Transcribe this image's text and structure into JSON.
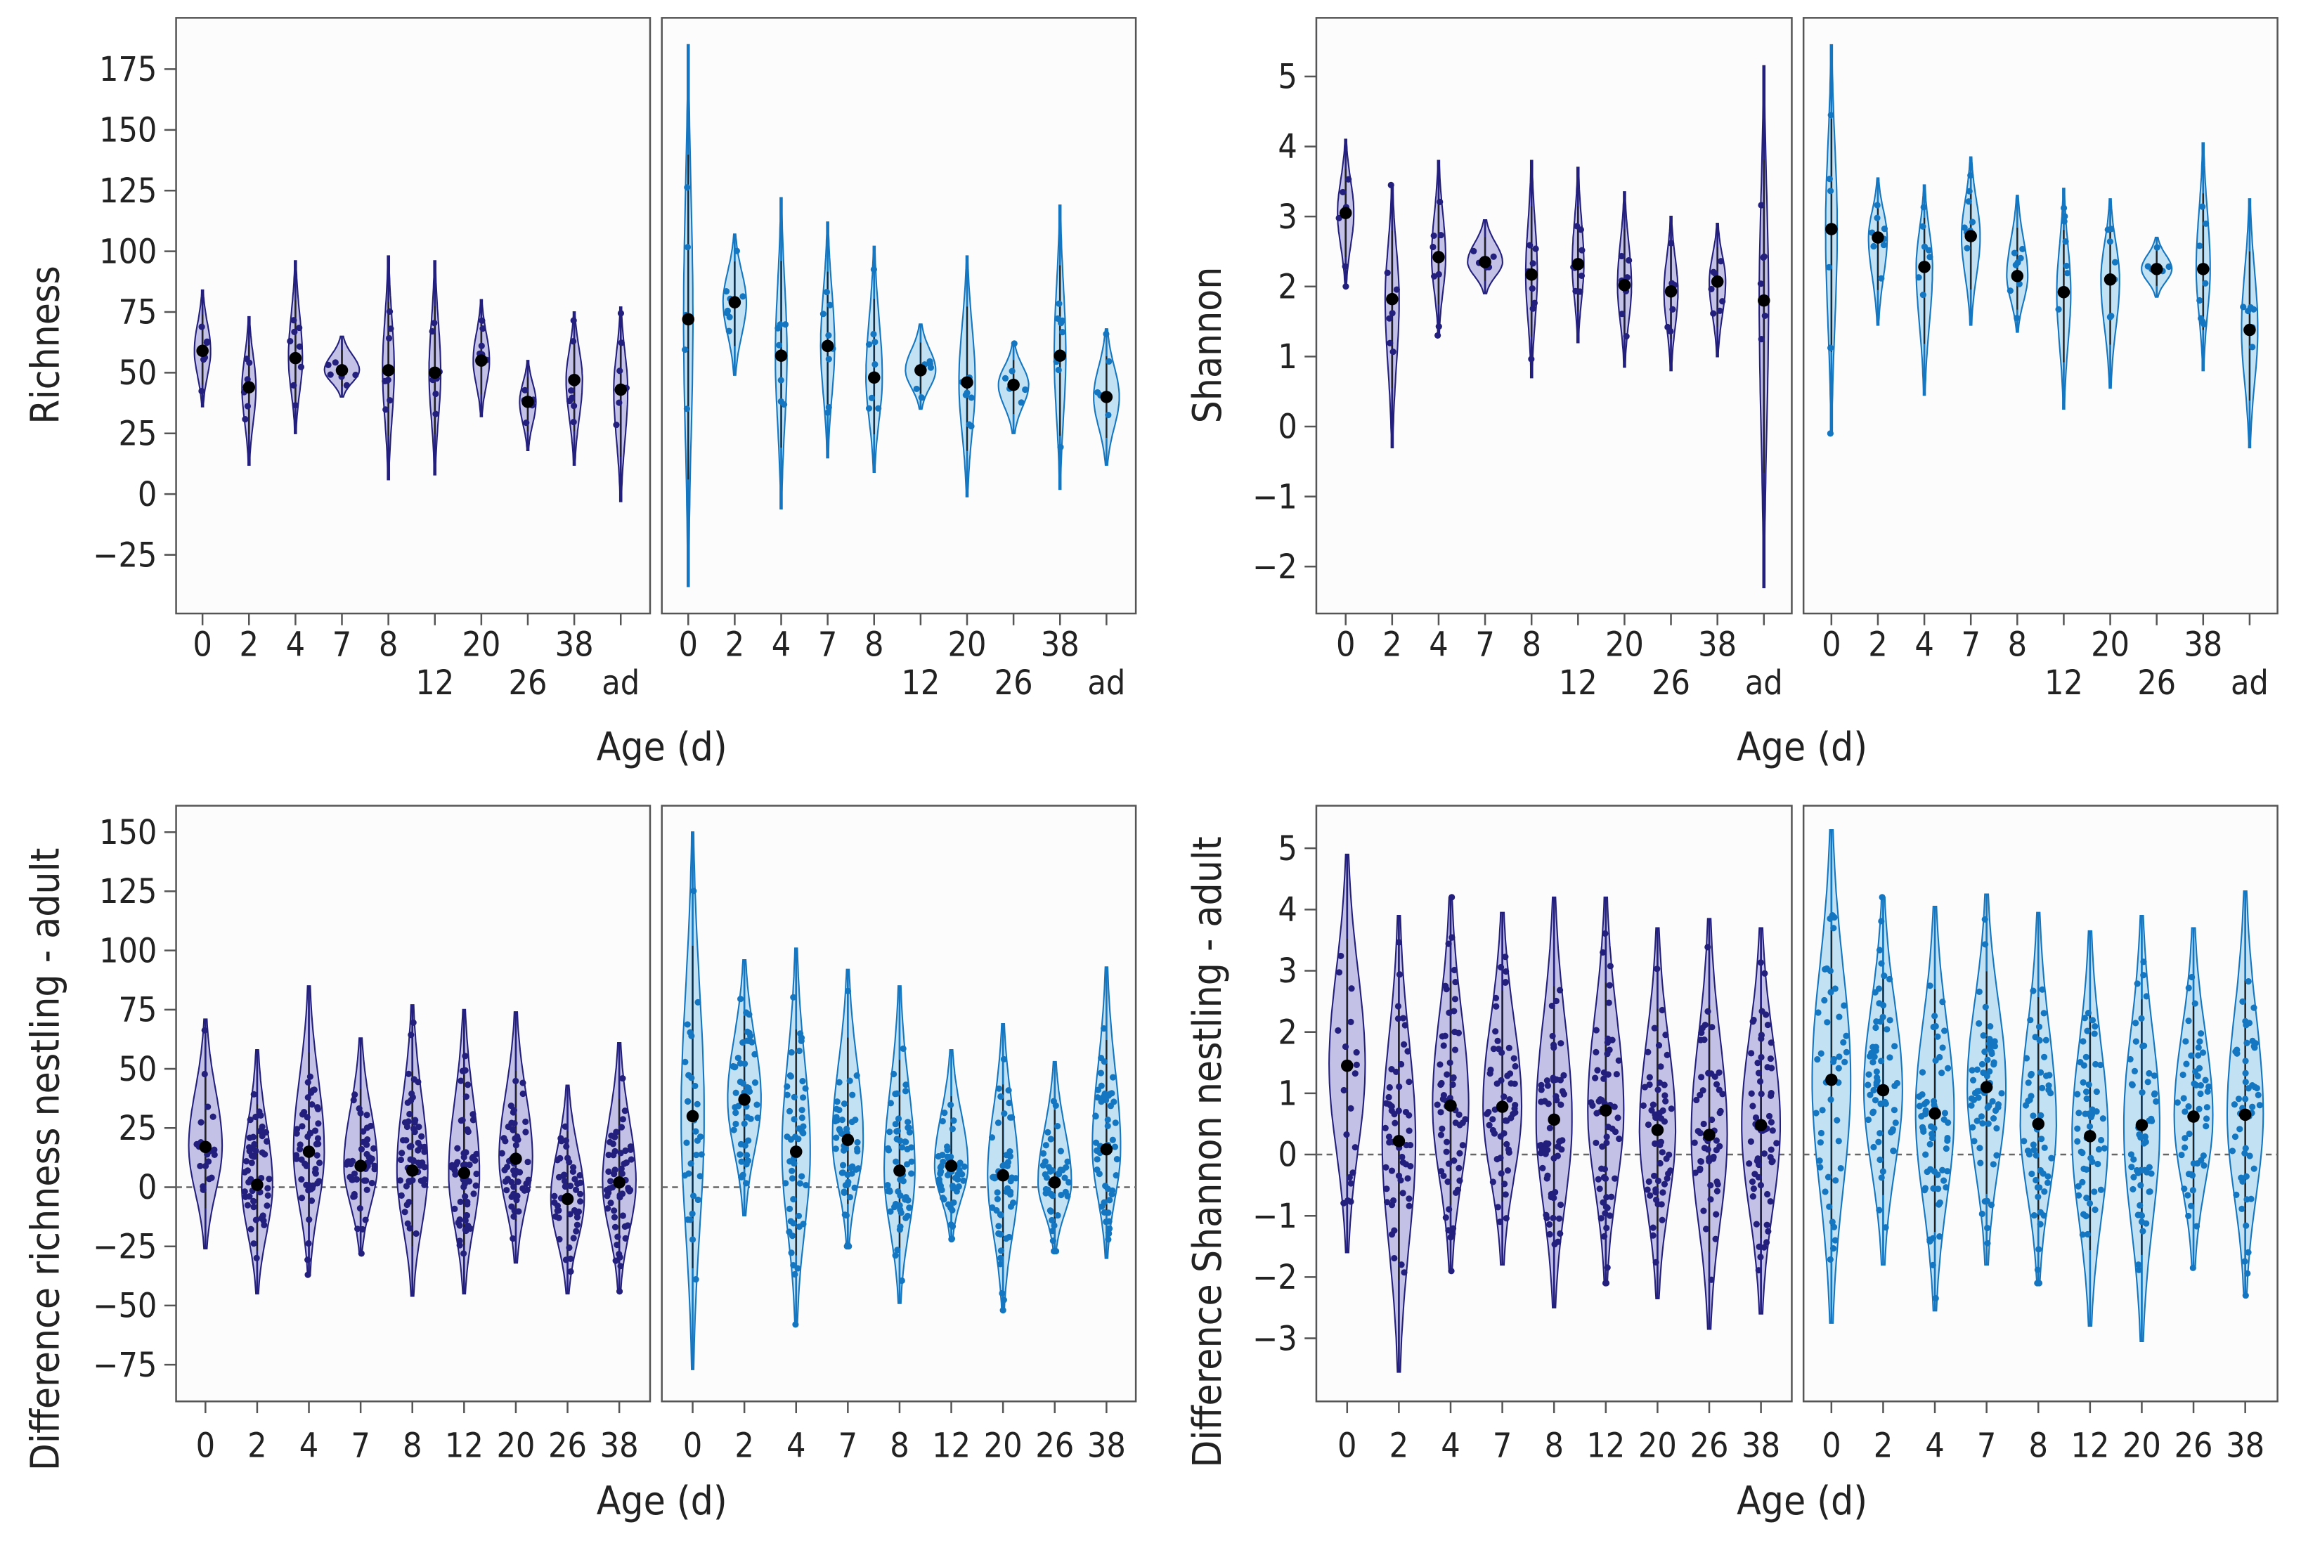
{
  "chart_data": [
    {
      "type": "violin",
      "panel": "A",
      "ylabel": "Richness",
      "xlabel": "Age (d)",
      "yticks": [
        175,
        150,
        125,
        100,
        75,
        50,
        25,
        0,
        -25
      ],
      "ylim": [
        -50,
        195
      ],
      "categories": [
        "0",
        "2",
        "4",
        "7",
        "8",
        "12",
        "20",
        "26",
        "38",
        "ad"
      ],
      "zero_line": false,
      "subpanels": [
        {
          "color": "#231f7c",
          "fill": "#c3c1e5",
          "means": [
            59,
            44,
            56,
            51,
            51,
            50,
            55,
            38,
            47,
            43
          ],
          "min": [
            36,
            12,
            25,
            40,
            6,
            8,
            32,
            18,
            12,
            -3
          ],
          "max": [
            84,
            73,
            96,
            65,
            98,
            96,
            80,
            55,
            75,
            77
          ],
          "width": [
            0.3,
            0.25,
            0.25,
            0.7,
            0.2,
            0.2,
            0.3,
            0.3,
            0.3,
            0.25
          ],
          "n": [
            6,
            6,
            8,
            6,
            8,
            8,
            7,
            6,
            8,
            6
          ]
        },
        {
          "color": "#1476c0",
          "fill": "#c2e2f4",
          "means": [
            72,
            79,
            57,
            61,
            48,
            51,
            46,
            45,
            57,
            40
          ],
          "min": [
            -38,
            49,
            -6,
            15,
            9,
            35,
            -1,
            25,
            2,
            12
          ],
          "max": [
            185,
            107,
            122,
            112,
            102,
            70,
            98,
            62,
            119,
            68
          ],
          "width": [
            0.15,
            0.45,
            0.2,
            0.25,
            0.3,
            0.6,
            0.3,
            0.6,
            0.2,
            0.5
          ],
          "n": [
            5,
            8,
            7,
            8,
            8,
            6,
            7,
            6,
            8,
            6
          ]
        }
      ]
    },
    {
      "type": "violin",
      "panel": "B",
      "ylabel": "Shannon",
      "xlabel": "Age (d)",
      "yticks": [
        5,
        4,
        3,
        2,
        1,
        0,
        -1,
        -2
      ],
      "ylim": [
        -2.6,
        5.8
      ],
      "categories": [
        "0",
        "2",
        "4",
        "7",
        "8",
        "12",
        "20",
        "26",
        "38",
        "ad"
      ],
      "zero_line": false,
      "subpanels": [
        {
          "color": "#231f7c",
          "fill": "#c3c1e5",
          "means": [
            3.05,
            1.82,
            2.42,
            2.35,
            2.17,
            2.32,
            2.02,
            1.93,
            2.07,
            1.8
          ],
          "min": [
            2.0,
            -0.3,
            1.3,
            1.9,
            0.7,
            1.2,
            0.85,
            0.8,
            1.0,
            -2.3
          ],
          "max": [
            4.1,
            3.45,
            3.8,
            2.95,
            3.8,
            3.7,
            3.35,
            3.0,
            2.9,
            5.15
          ],
          "width": [
            0.3,
            0.25,
            0.25,
            0.7,
            0.2,
            0.2,
            0.25,
            0.25,
            0.3,
            0.15
          ],
          "n": [
            6,
            7,
            8,
            5,
            8,
            8,
            7,
            6,
            8,
            6
          ]
        },
        {
          "color": "#1476c0",
          "fill": "#c2e2f4",
          "means": [
            2.82,
            2.7,
            2.28,
            2.72,
            2.15,
            1.92,
            2.1,
            2.25,
            2.25,
            1.38
          ],
          "min": [
            -0.1,
            1.45,
            0.45,
            1.45,
            1.35,
            0.25,
            0.55,
            1.85,
            0.8,
            -0.3
          ],
          "max": [
            5.45,
            3.55,
            3.45,
            3.85,
            3.3,
            3.4,
            3.25,
            2.7,
            4.05,
            3.25
          ],
          "width": [
            0.2,
            0.35,
            0.3,
            0.35,
            0.4,
            0.25,
            0.35,
            0.6,
            0.25,
            0.3
          ],
          "n": [
            6,
            8,
            7,
            8,
            8,
            7,
            7,
            6,
            8,
            6
          ]
        }
      ]
    },
    {
      "type": "violin",
      "panel": "C",
      "ylabel": "Difference richness nestling - adult",
      "xlabel": "Age (d)",
      "yticks": [
        150,
        125,
        100,
        75,
        50,
        25,
        0,
        -25,
        -50,
        -75
      ],
      "ylim": [
        -90,
        162
      ],
      "categories": [
        "0",
        "2",
        "4",
        "7",
        "8",
        "12",
        "20",
        "26",
        "38"
      ],
      "zero_line": true,
      "subpanels": [
        {
          "color": "#231f7c",
          "fill": "#c3c1e5",
          "means": [
            17,
            1,
            15,
            9,
            7,
            6,
            12,
            -5,
            2
          ],
          "min": [
            -26,
            -45,
            -37,
            -28,
            -46,
            -45,
            -32,
            -45,
            -44
          ],
          "max": [
            71,
            58,
            85,
            63,
            77,
            75,
            74,
            43,
            61
          ],
          "width": [
            0.6,
            0.55,
            0.55,
            0.6,
            0.55,
            0.55,
            0.6,
            0.6,
            0.6
          ],
          "n": [
            20,
            50,
            50,
            45,
            55,
            55,
            50,
            45,
            55
          ]
        },
        {
          "color": "#1476c0",
          "fill": "#c2e2f4",
          "means": [
            30,
            37,
            15,
            20,
            7,
            9,
            5,
            2,
            16
          ],
          "min": [
            -77,
            -12,
            -58,
            -25,
            -49,
            -22,
            -52,
            -27,
            -30
          ],
          "max": [
            150,
            96,
            101,
            92,
            85,
            58,
            69,
            53,
            93
          ],
          "width": [
            0.4,
            0.6,
            0.5,
            0.55,
            0.55,
            0.6,
            0.55,
            0.6,
            0.5
          ],
          "n": [
            30,
            50,
            50,
            50,
            55,
            50,
            50,
            45,
            50
          ]
        }
      ]
    },
    {
      "type": "violin",
      "panel": "D",
      "ylabel": "Difference Shannon nestling - adult",
      "xlabel": "Age (d)",
      "yticks": [
        5,
        4,
        3,
        2,
        1,
        0,
        -1,
        -2,
        -3
      ],
      "ylim": [
        -4.0,
        5.6
      ],
      "categories": [
        "0",
        "2",
        "4",
        "7",
        "8",
        "12",
        "20",
        "26",
        "38"
      ],
      "zero_line": true,
      "subpanels": [
        {
          "color": "#231f7c",
          "fill": "#c3c1e5",
          "means": [
            1.45,
            0.22,
            0.8,
            0.78,
            0.57,
            0.72,
            0.4,
            0.32,
            0.48
          ],
          "min": [
            -1.6,
            -3.55,
            -1.9,
            -1.8,
            -2.5,
            -2.1,
            -2.35,
            -2.85,
            -2.6
          ],
          "max": [
            4.9,
            3.9,
            4.2,
            3.95,
            4.2,
            4.2,
            3.7,
            3.85,
            3.7
          ],
          "width": [
            0.65,
            0.6,
            0.65,
            0.7,
            0.65,
            0.65,
            0.65,
            0.65,
            0.7
          ],
          "n": [
            20,
            55,
            60,
            55,
            60,
            60,
            55,
            55,
            60
          ]
        },
        {
          "color": "#1476c0",
          "fill": "#c2e2f4",
          "means": [
            1.22,
            1.05,
            0.67,
            1.1,
            0.5,
            0.3,
            0.48,
            0.62,
            0.65
          ],
          "min": [
            -2.75,
            -1.8,
            -2.55,
            -1.8,
            -2.1,
            -2.8,
            -3.05,
            -1.85,
            -2.3
          ],
          "max": [
            5.3,
            4.2,
            4.05,
            4.25,
            3.95,
            3.65,
            3.9,
            3.7,
            4.3
          ],
          "width": [
            0.7,
            0.7,
            0.7,
            0.7,
            0.65,
            0.65,
            0.65,
            0.7,
            0.65
          ],
          "n": [
            45,
            60,
            60,
            60,
            55,
            55,
            55,
            50,
            50
          ]
        }
      ]
    }
  ]
}
